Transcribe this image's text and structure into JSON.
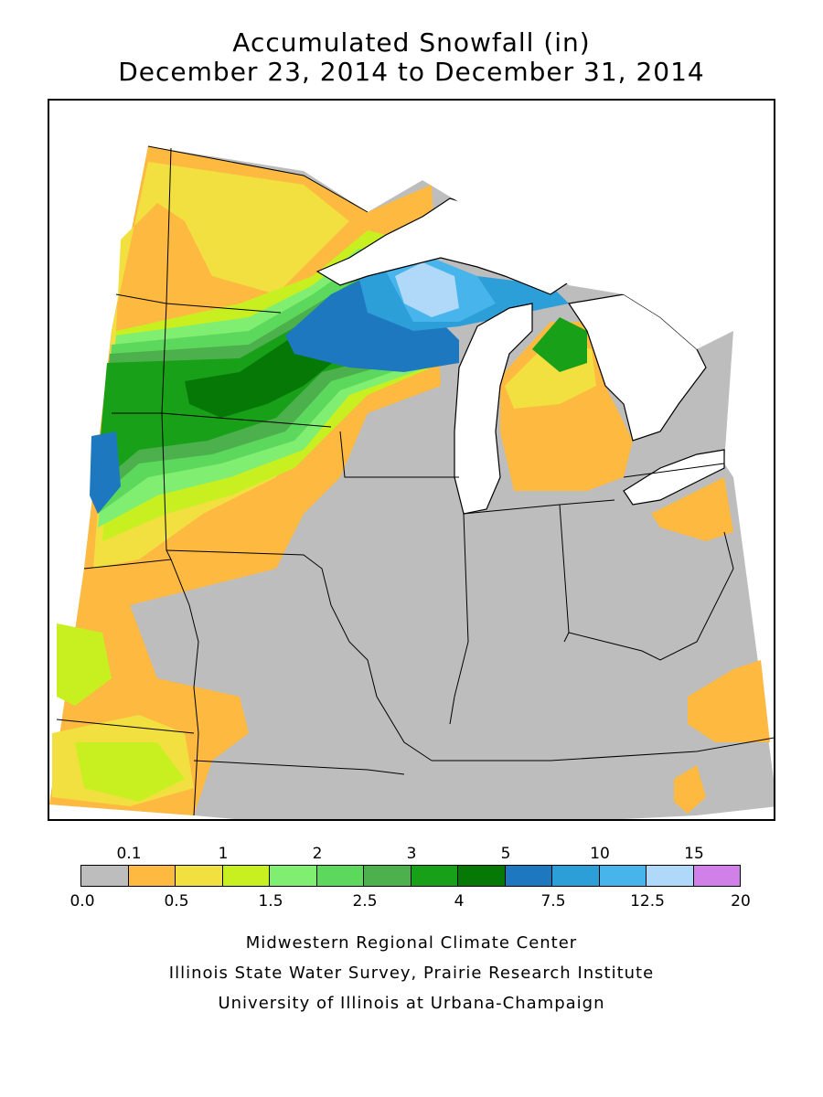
{
  "title": {
    "line1": "Accumulated Snowfall (in)",
    "line2": "December 23, 2014 to December 31, 2014"
  },
  "legend": {
    "top_labels": [
      "0.1",
      "1",
      "2",
      "3",
      "5",
      "10",
      "15"
    ],
    "bottom_labels": [
      "0.0",
      "0.5",
      "1.5",
      "2.5",
      "4",
      "7.5",
      "12.5",
      "20"
    ],
    "colors": [
      "#bdbdbd",
      "#fdb940",
      "#f1e040",
      "#c8f020",
      "#80ee70",
      "#5cd85c",
      "#4cb04c",
      "#18a018",
      "#067806",
      "#1e78c0",
      "#2c9ed8",
      "#48b4ec",
      "#b0d8f8",
      "#d080e8"
    ]
  },
  "map": {
    "lake_color": "#ffffff",
    "no_snow_color": "#bdbdbd"
  },
  "credits": {
    "line1": "Midwestern Regional Climate Center",
    "line2": "Illinois State Water Survey, Prairie Research Institute",
    "line3": "University of Illinois at Urbana-Champaign"
  }
}
